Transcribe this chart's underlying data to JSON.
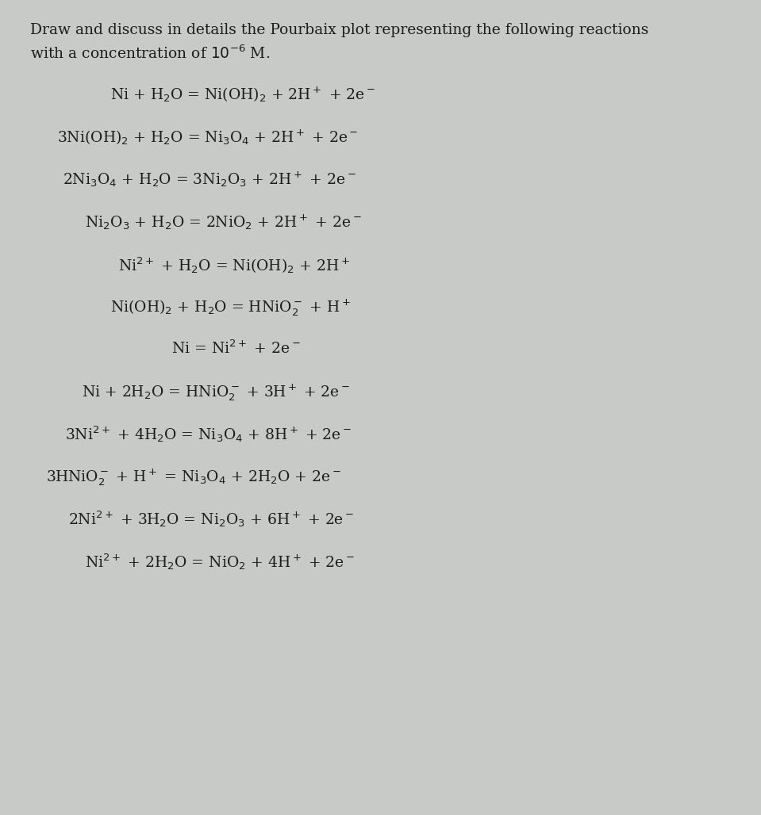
{
  "background_color": "#c8cac7",
  "text_color": "#1c1c1c",
  "title_fontsize": 13.5,
  "eq_fontsize": 13.5,
  "title_line1": "Draw and discuss in details the Pourbaix plot representing the following reactions",
  "title_line2": "with a concentration of $10^{-6}$ M.",
  "equations": [
    {
      "text": "Ni + H$_2$O = Ni(OH)$_2$ + 2H$^+$ + 2e$^-$",
      "indent": 0.145
    },
    {
      "text": "3Ni(OH)$_2$ + H$_2$O = Ni$_3$O$_4$ + 2H$^+$ + 2e$^-$",
      "indent": 0.075
    },
    {
      "text": "2Ni$_3$O$_4$ + H$_2$O = 3Ni$_2$O$_3$ + 2H$^+$ + 2e$^-$",
      "indent": 0.082
    },
    {
      "text": "Ni$_2$O$_3$ + H$_2$O = 2NiO$_2$ + 2H$^+$ + 2e$^-$",
      "indent": 0.112
    },
    {
      "text": "Ni$^{2+}$ + H$_2$O = Ni(OH)$_2$ + 2H$^+$",
      "indent": 0.155
    },
    {
      "text": "Ni(OH)$_2$ + H$_2$O = HNiO$_2^-$ + H$^+$",
      "indent": 0.145
    },
    {
      "text": "Ni = Ni$^{2+}$ + 2e$^-$",
      "indent": 0.225
    },
    {
      "text": "Ni + 2H$_2$O = HNiO$_2^-$ + 3H$^+$ + 2e$^-$",
      "indent": 0.107
    },
    {
      "text": "3Ni$^{2+}$ + 4H$_2$O = Ni$_3$O$_4$ + 8H$^+$ + 2e$^-$",
      "indent": 0.085
    },
    {
      "text": "3HNiO$_2^-$ + H$^+$ = Ni$_3$O$_4$ + 2H$_2$O + 2e$^-$",
      "indent": 0.06
    },
    {
      "text": "2Ni$^{2+}$ + 3H$_2$O = Ni$_2$O$_3$ + 6H$^+$ + 2e$^-$",
      "indent": 0.09
    },
    {
      "text": "Ni$^{2+}$ + 2H$_2$O = NiO$_2$ + 4H$^+$ + 2e$^-$",
      "indent": 0.112
    }
  ],
  "fig_width": 9.59,
  "fig_height": 10.28,
  "dpi": 100
}
